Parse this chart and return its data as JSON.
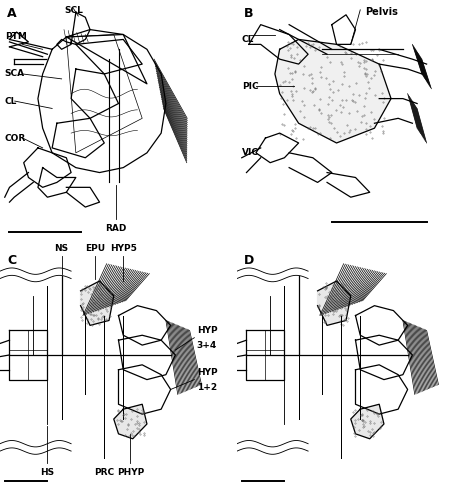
{
  "figure_width": 4.74,
  "figure_height": 4.93,
  "dpi": 100,
  "bg_color": "#ffffff",
  "line_color": "#000000",
  "gray_color": "#888888",
  "light_gray": "#cccccc",
  "label_fontsize": 6.5,
  "panel_label_fontsize": 9,
  "lw_main": 0.9,
  "lw_thin": 0.5,
  "lw_thick": 1.4,
  "panel_labels": [
    "A",
    "B",
    "C",
    "D"
  ]
}
